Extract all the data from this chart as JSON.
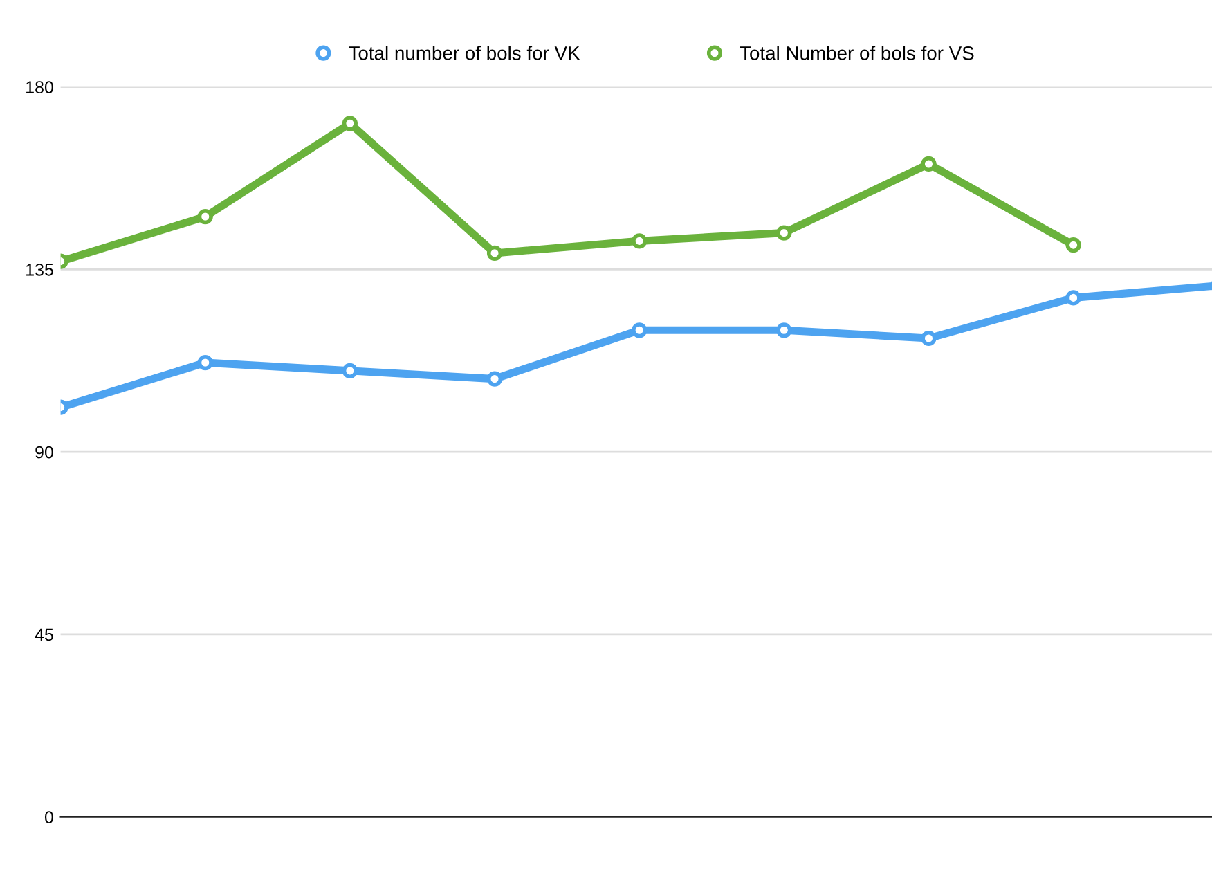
{
  "chart_data": {
    "type": "line",
    "categories": [
      null,
      null,
      null,
      null,
      null,
      null,
      null,
      null,
      null
    ],
    "series": [
      {
        "name": "Total number of bols for VK",
        "color": "#4da3f0",
        "values": [
          101,
          112,
          110,
          108,
          120,
          120,
          118,
          128,
          131
        ]
      },
      {
        "name": "Total Number of bols for VS",
        "color": "#6ab23c",
        "values": [
          137,
          148,
          171,
          139,
          142,
          144,
          161,
          141,
          null
        ]
      }
    ],
    "ylim": [
      0,
      180
    ],
    "yticks": [
      0,
      45,
      90,
      135,
      180
    ],
    "grid": "y",
    "legend": "top",
    "marker": "circle",
    "line_style": "solid"
  }
}
